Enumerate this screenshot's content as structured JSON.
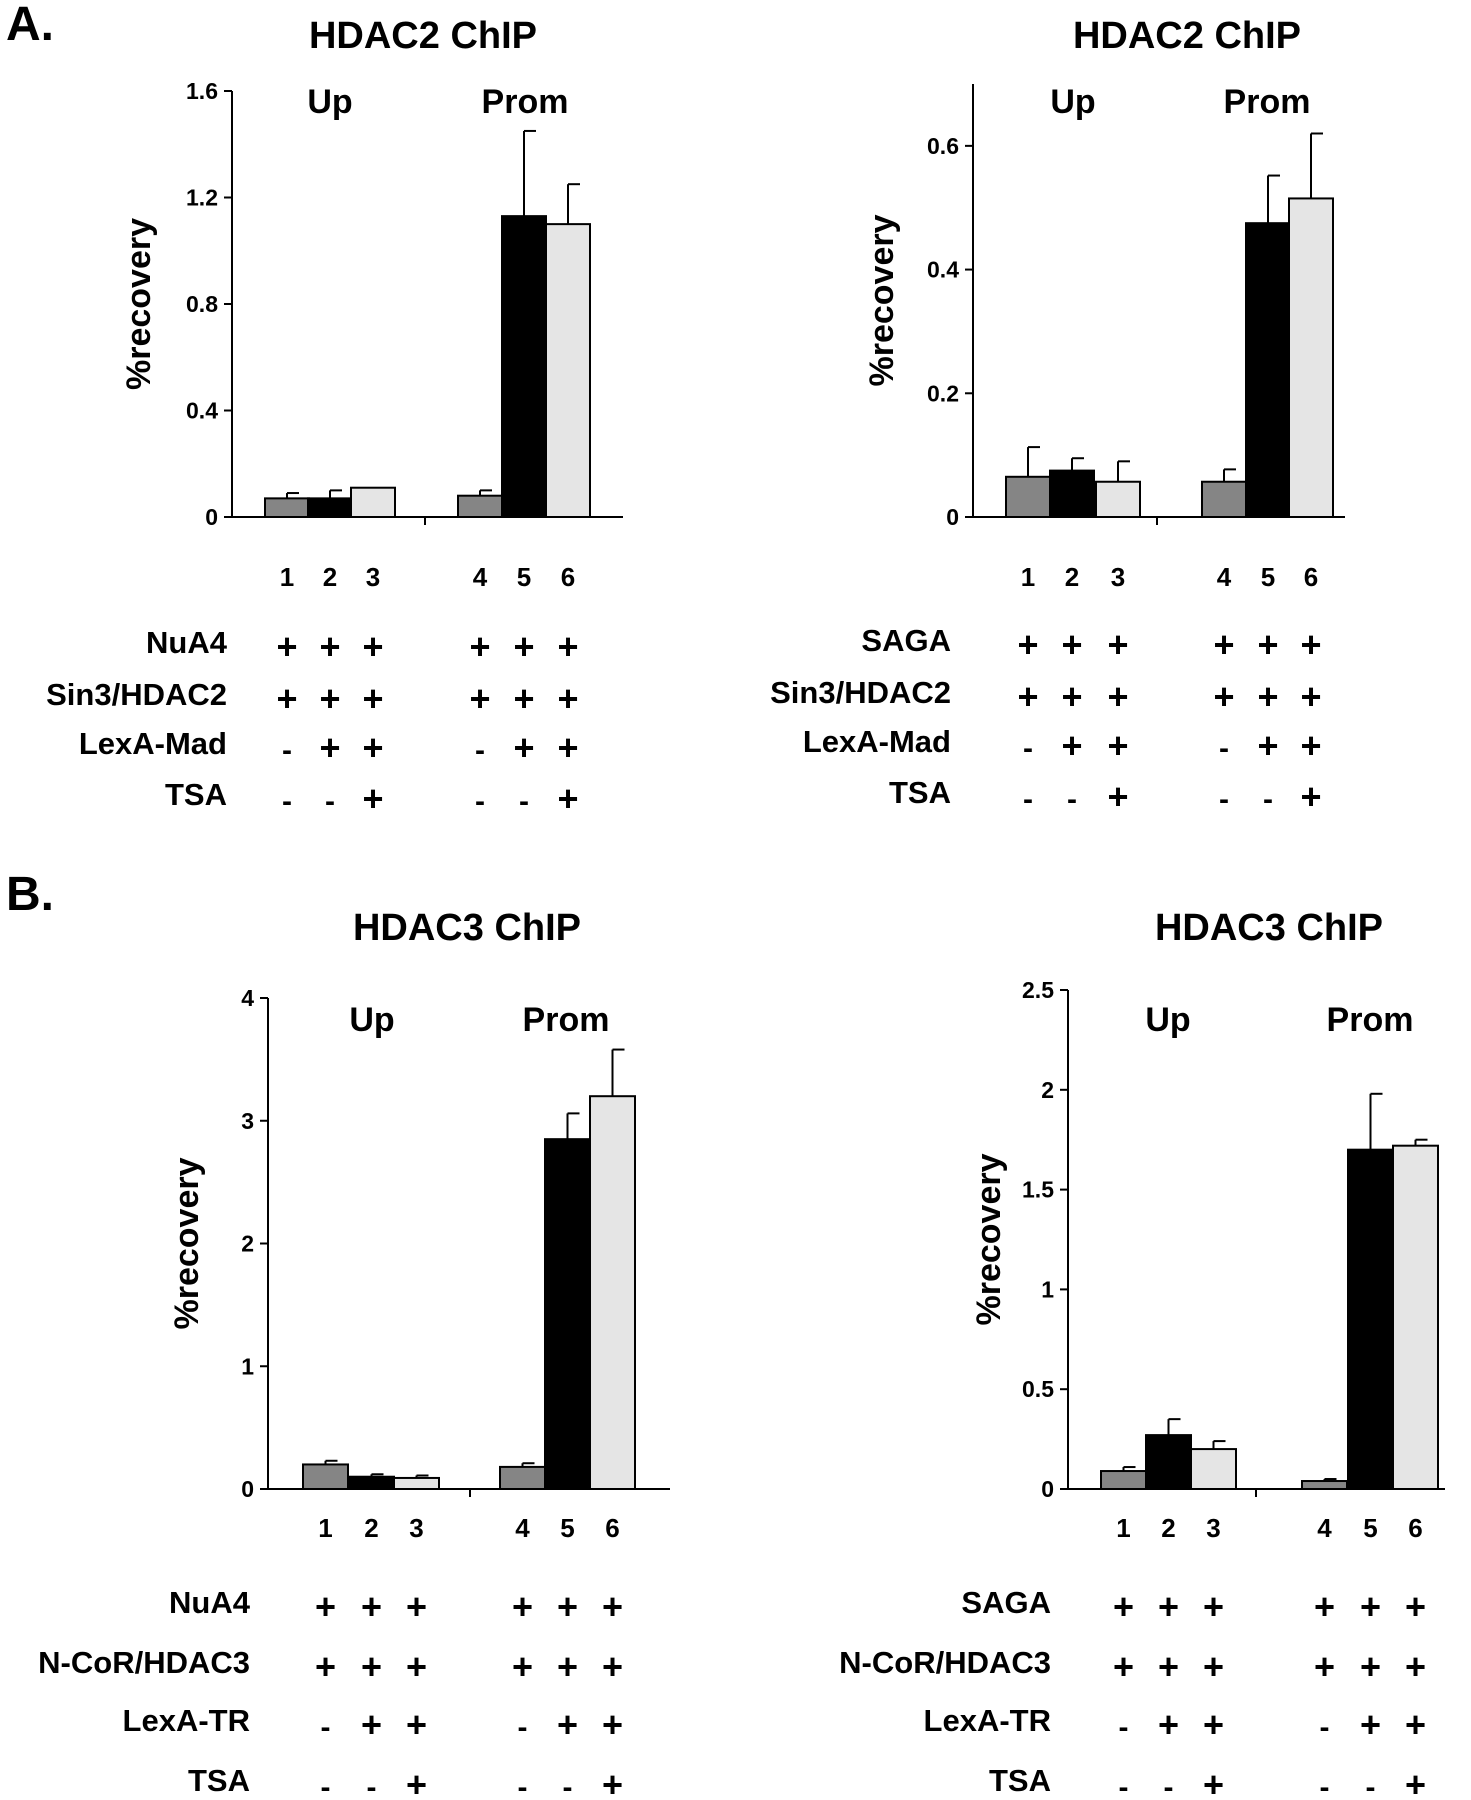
{
  "section_labels": {
    "a": "A.",
    "b": "B."
  },
  "colors": {
    "gray": "#858585",
    "black": "#000000",
    "light": "#e5e5e5"
  },
  "chart_data": [
    {
      "type": "bar",
      "title": "HDAC2 ChIP",
      "ylabel": "%recovery",
      "ylim": [
        0,
        1.6
      ],
      "yticks": [
        0,
        0.4,
        0.8,
        1.2,
        1.6
      ],
      "ytick_labels": [
        "0",
        "0.4",
        "0.8",
        "1.2",
        "1.6"
      ],
      "groups": [
        "Up",
        "Prom"
      ],
      "lanes": [
        "1",
        "2",
        "3",
        "4",
        "5",
        "6"
      ],
      "bar_colors": [
        "gray",
        "black",
        "light",
        "gray",
        "black",
        "light"
      ],
      "values": [
        0.07,
        0.07,
        0.11,
        0.08,
        1.13,
        1.1
      ],
      "errors": [
        0.02,
        0.03,
        0.0,
        0.02,
        0.32,
        0.15
      ],
      "conditions": [
        {
          "label": "NuA4",
          "signs": [
            "+",
            "+",
            "+",
            "+",
            "+",
            "+"
          ]
        },
        {
          "label": "Sin3/HDAC2",
          "signs": [
            "+",
            "+",
            "+",
            "+",
            "+",
            "+"
          ]
        },
        {
          "label": "LexA-Mad",
          "signs": [
            "-",
            "+",
            "+",
            "-",
            "+",
            "+"
          ]
        },
        {
          "label": "TSA",
          "signs": [
            "-",
            "-",
            "+",
            "-",
            "-",
            "+"
          ]
        }
      ]
    },
    {
      "type": "bar",
      "title": "HDAC2 ChIP",
      "ylabel": "%recovery",
      "ylim": [
        0,
        0.7
      ],
      "yticks": [
        0,
        0.2,
        0.4,
        0.6
      ],
      "ytick_labels": [
        "0",
        "0.2",
        "0.4",
        "0.6"
      ],
      "groups": [
        "Up",
        "Prom"
      ],
      "lanes": [
        "1",
        "2",
        "3",
        "4",
        "5",
        "6"
      ],
      "bar_colors": [
        "gray",
        "black",
        "light",
        "gray",
        "black",
        "light"
      ],
      "values": [
        0.065,
        0.075,
        0.057,
        0.057,
        0.475,
        0.515
      ],
      "errors": [
        0.048,
        0.02,
        0.033,
        0.02,
        0.077,
        0.105
      ],
      "conditions": [
        {
          "label": "SAGA",
          "signs": [
            "+",
            "+",
            "+",
            "+",
            "+",
            "+"
          ]
        },
        {
          "label": "Sin3/HDAC2",
          "signs": [
            "+",
            "+",
            "+",
            "+",
            "+",
            "+"
          ]
        },
        {
          "label": "LexA-Mad",
          "signs": [
            "-",
            "+",
            "+",
            "-",
            "+",
            "+"
          ]
        },
        {
          "label": "TSA",
          "signs": [
            "-",
            "-",
            "+",
            "-",
            "-",
            "+"
          ]
        }
      ]
    },
    {
      "type": "bar",
      "title": "HDAC3 ChIP",
      "ylabel": "%recovery",
      "ylim": [
        0,
        4
      ],
      "yticks": [
        0,
        1,
        2,
        3,
        4
      ],
      "ytick_labels": [
        "0",
        "1",
        "2",
        "3",
        "4"
      ],
      "groups": [
        "Up",
        "Prom"
      ],
      "lanes": [
        "1",
        "2",
        "3",
        "4",
        "5",
        "6"
      ],
      "bar_colors": [
        "gray",
        "black",
        "light",
        "gray",
        "black",
        "light"
      ],
      "values": [
        0.2,
        0.1,
        0.09,
        0.18,
        2.85,
        3.2
      ],
      "errors": [
        0.03,
        0.02,
        0.02,
        0.03,
        0.21,
        0.38
      ],
      "conditions": [
        {
          "label": "NuA4",
          "signs": [
            "+",
            "+",
            "+",
            "+",
            "+",
            "+"
          ]
        },
        {
          "label": "N-CoR/HDAC3",
          "signs": [
            "+",
            "+",
            "+",
            "+",
            "+",
            "+"
          ]
        },
        {
          "label": "LexA-TR",
          "signs": [
            "-",
            "+",
            "+",
            "-",
            "+",
            "+"
          ]
        },
        {
          "label": "TSA",
          "signs": [
            "-",
            "-",
            "+",
            "-",
            "-",
            "+"
          ]
        }
      ]
    },
    {
      "type": "bar",
      "title": "HDAC3 ChIP",
      "ylabel": "%recovery",
      "ylim": [
        0,
        2.5
      ],
      "yticks": [
        0,
        0.5,
        1,
        1.5,
        2,
        2.5
      ],
      "ytick_labels": [
        "0",
        "0.5",
        "1",
        "1.5",
        "2",
        "2.5"
      ],
      "groups": [
        "Up",
        "Prom"
      ],
      "lanes": [
        "1",
        "2",
        "3",
        "4",
        "5",
        "6"
      ],
      "bar_colors": [
        "gray",
        "black",
        "light",
        "gray",
        "black",
        "light"
      ],
      "values": [
        0.09,
        0.27,
        0.2,
        0.04,
        1.7,
        1.72
      ],
      "errors": [
        0.02,
        0.08,
        0.04,
        0.01,
        0.28,
        0.03
      ],
      "conditions": [
        {
          "label": "SAGA",
          "signs": [
            "+",
            "+",
            "+",
            "+",
            "+",
            "+"
          ]
        },
        {
          "label": "N-CoR/HDAC3",
          "signs": [
            "+",
            "+",
            "+",
            "+",
            "+",
            "+"
          ]
        },
        {
          "label": "LexA-TR",
          "signs": [
            "-",
            "+",
            "+",
            "-",
            "+",
            "+"
          ]
        },
        {
          "label": "TSA",
          "signs": [
            "-",
            "-",
            "+",
            "-",
            "-",
            "+"
          ]
        }
      ]
    }
  ]
}
